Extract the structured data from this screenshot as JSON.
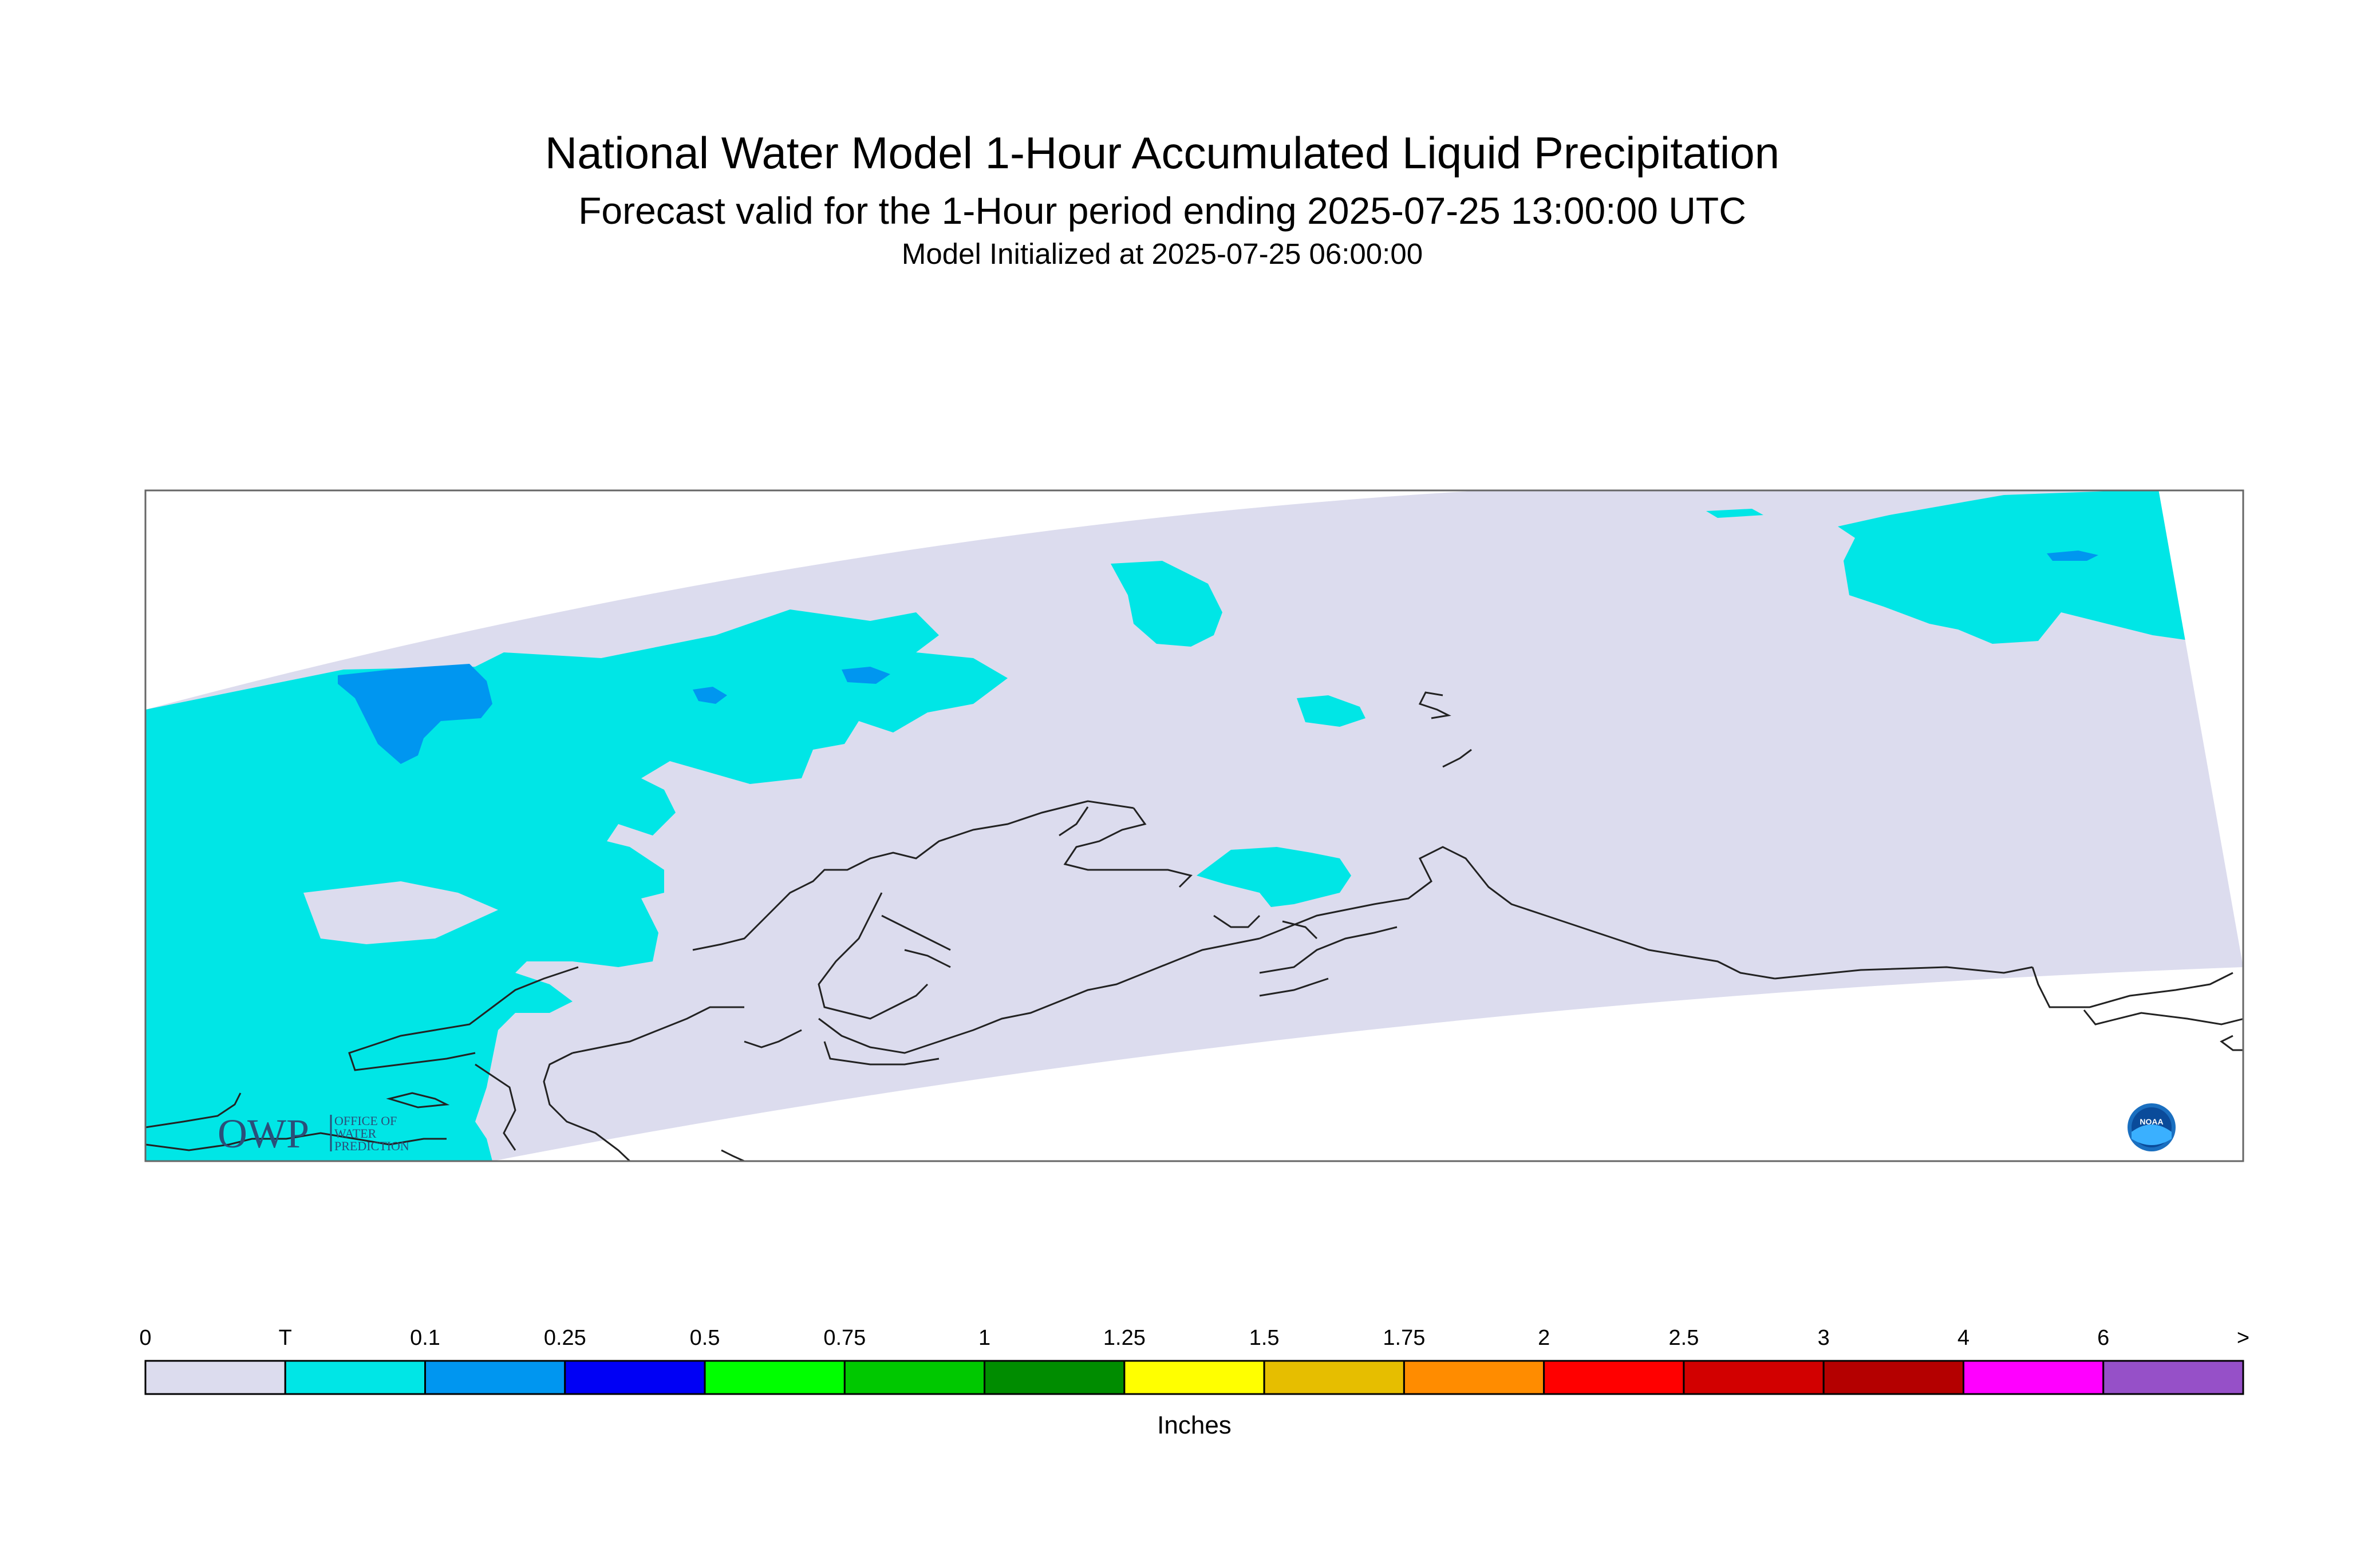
{
  "title": "National Water Model 1-Hour Accumulated Liquid Precipitation",
  "subtitle": "Forecast valid for the 1-Hour period ending 2025-07-25 13:00:00 UTC",
  "init_line": "Model Initialized at 2025-07-25 06:00:00",
  "logos": {
    "owp_main": "OWP",
    "owp_small": [
      "OFFICE OF",
      "WATER",
      "PREDICTION"
    ],
    "noaa": "NOAA"
  },
  "legend": {
    "unit_label": "Inches",
    "ticks": [
      "0",
      "T",
      "0.1",
      "0.25",
      "0.5",
      "0.75",
      "1",
      "1.25",
      "1.5",
      "1.75",
      "2",
      "2.5",
      "3",
      "4",
      "6",
      ">"
    ],
    "colors": [
      "#dcdcee",
      "#00e6e6",
      "#0096f0",
      "#0000f5",
      "#00ff00",
      "#00c800",
      "#008c00",
      "#ffff00",
      "#e6be00",
      "#ff8c00",
      "#ff0000",
      "#d20000",
      "#b40000",
      "#ff00ff",
      "#9650c8"
    ]
  },
  "map_colors": {
    "no_precip": "#dcdcee",
    "trace": "#00e6e6",
    "light": "#0096f0",
    "coast": "#222222"
  }
}
